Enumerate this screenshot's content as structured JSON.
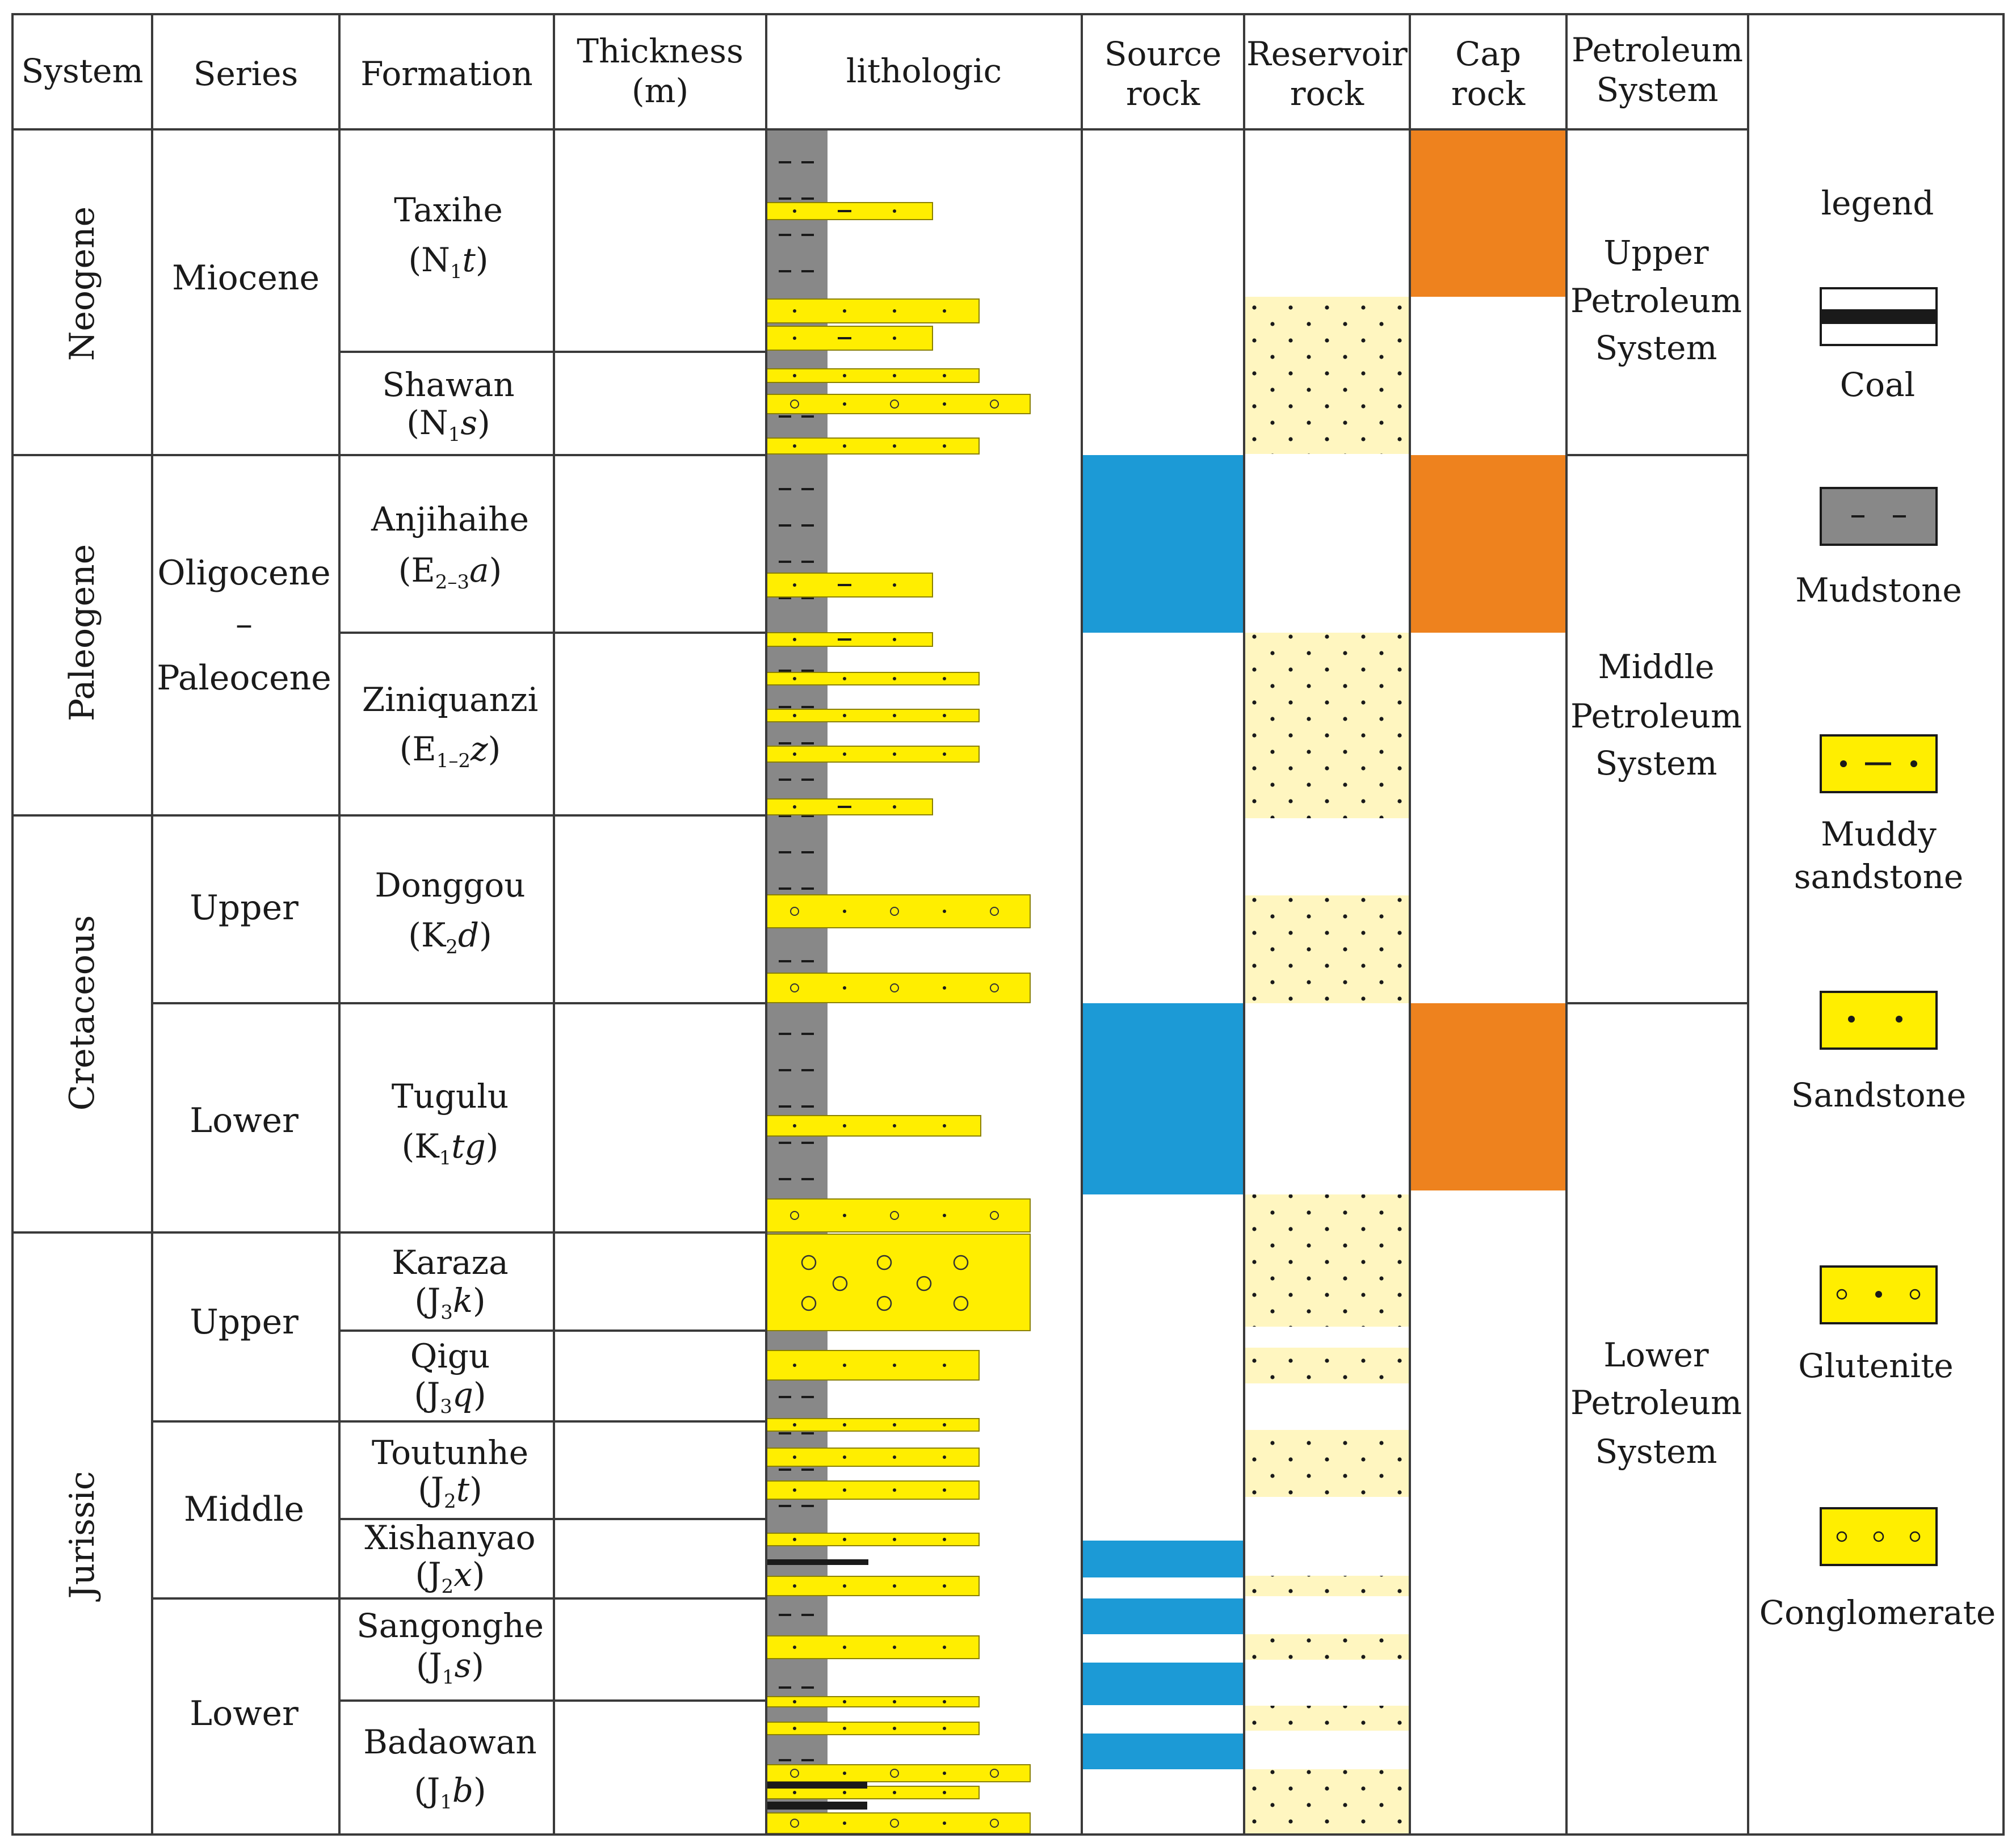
{
  "headers": {
    "system": "System",
    "series": "Series",
    "formation": "Formation",
    "thickness": [
      "Thickness",
      "(m)"
    ],
    "lithologic": "lithologic",
    "source": [
      "Source",
      "rock"
    ],
    "reservoir": [
      "Reservoir",
      "rock"
    ],
    "cap": [
      "Cap",
      "rock"
    ],
    "petroleum": [
      "Petroleum",
      "System"
    ]
  },
  "systems": [
    "Neogene",
    "Paleogene",
    "Cretaceous",
    "Jurissic"
  ],
  "series": {
    "miocene": "Miocene",
    "oligocene": "Oligocene",
    "dash": "–",
    "paleocene": "Paleocene",
    "cret_upper": "Upper",
    "cret_lower": "Lower",
    "jur_upper": "Upper",
    "jur_middle": "Middle",
    "jur_lower": "Lower"
  },
  "formations": [
    {
      "name": "Taxihe",
      "code": "(N1t)"
    },
    {
      "name": "Shawan",
      "code": "(N1s)"
    },
    {
      "name": "Anjihaihe",
      "code": "(E2–3a)"
    },
    {
      "name": "Ziniquanzi",
      "code": "(E1–2z)"
    },
    {
      "name": "Donggou",
      "code": "(K2d)"
    },
    {
      "name": "Tugulu",
      "code": "(K1tg)"
    },
    {
      "name": "Karaza",
      "code": "(J3k)"
    },
    {
      "name": "Qigu",
      "code": "(J3q)"
    },
    {
      "name": "Toutunhe",
      "code": "(J2t)"
    },
    {
      "name": "Xishanyao",
      "code": "(J2x)"
    },
    {
      "name": "Sangonghe",
      "code": "(J1s)"
    },
    {
      "name": "Badaowan",
      "code": "(J1b)"
    }
  ],
  "code_parts": {
    "open": "(",
    "close": ")",
    "N": "N",
    "E": "E",
    "K": "K",
    "J": "J",
    "sub1": "1",
    "sub2": "2",
    "sub3": "3",
    "sub23": "2–3",
    "sub12": "1–2",
    "t": "t",
    "s": "s",
    "a": "a",
    "z": "z",
    "d": "d",
    "tg": "tg",
    "k": "k",
    "q": "q",
    "x": "x",
    "b": "b"
  },
  "petroleum_systems": [
    [
      "Upper",
      "Petroleum",
      "System"
    ],
    [
      "Middle",
      "Petroleum",
      "System"
    ],
    [
      "Lower",
      "Petroleum",
      "System"
    ]
  ],
  "legend": {
    "title": "legend",
    "items": [
      {
        "key": "coal",
        "label": [
          "Coal"
        ]
      },
      {
        "key": "mudstone",
        "label": [
          "Mudstone"
        ]
      },
      {
        "key": "muddy_sandstone",
        "label": [
          "Muddy",
          "sandstone"
        ]
      },
      {
        "key": "sandstone",
        "label": [
          "Sandstone"
        ]
      },
      {
        "key": "glutenite",
        "label": [
          "Glutenite"
        ]
      },
      {
        "key": "conglomerate",
        "label": [
          "Conglomerate"
        ]
      }
    ]
  },
  "colors": {
    "line": "#3a3a3a",
    "mudstone": "#888888",
    "sand": "#ffee00",
    "sand_border": "#8a8000",
    "reservoir": "#fff6c0",
    "source": "#1c9ad6",
    "cap": "#ee821e",
    "coal": "#1a1a1a"
  }
}
